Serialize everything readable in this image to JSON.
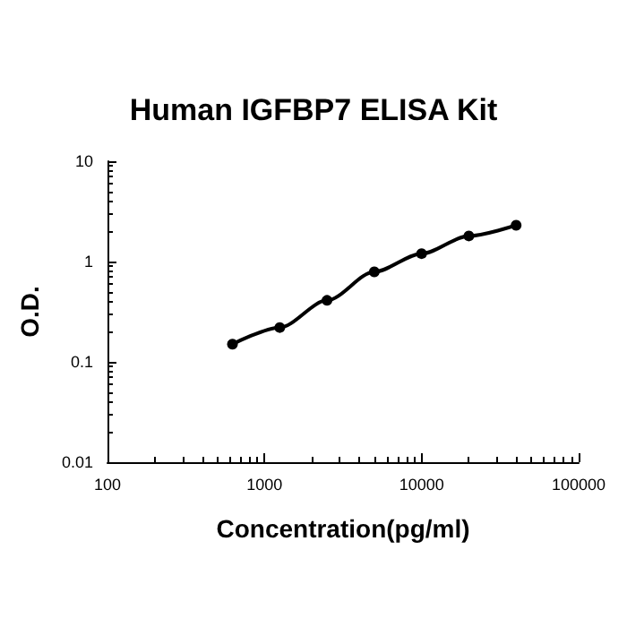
{
  "chart_data": {
    "type": "line",
    "title": "Human IGFBP7 ELISA Kit",
    "xlabel": "Concentration(pg/ml)",
    "ylabel": "O.D.",
    "log": "xy",
    "xlim": [
      100,
      100000
    ],
    "xticks": [
      100,
      1000,
      10000,
      100000
    ],
    "ylim": [
      0.01,
      10
    ],
    "yticks": [
      0.01,
      0.1,
      1,
      10
    ],
    "x": [
      625,
      1250,
      2500,
      5000,
      10000,
      20000,
      40000
    ],
    "series": [
      {
        "color": "#000000",
        "values": [
          0.15,
          0.22,
          0.41,
          0.79,
          1.2,
          1.8,
          2.3
        ]
      }
    ],
    "marker": "circle",
    "line_style": "solid",
    "grid": false
  }
}
